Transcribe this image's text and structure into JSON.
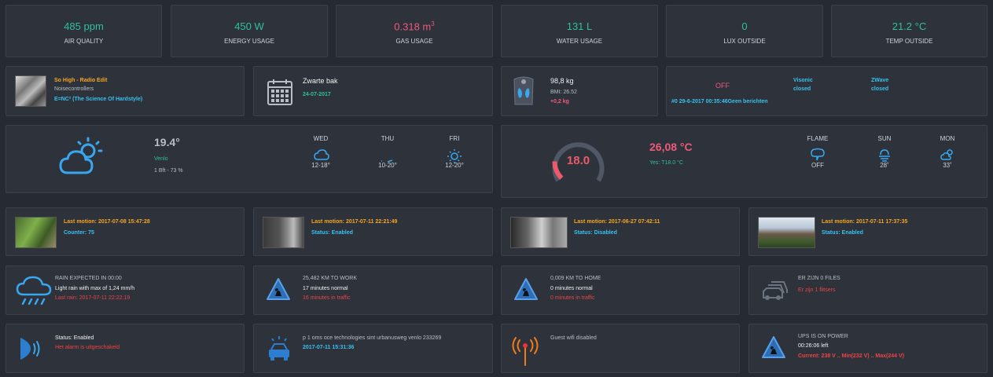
{
  "stats": [
    {
      "value": "485 ppm",
      "label": "AIR QUALITY",
      "color": "#2fbf9f"
    },
    {
      "value": "450 W",
      "label": "ENERGY USAGE",
      "color": "#2fbf9f"
    },
    {
      "value": "0.318 m",
      "sup": "3",
      "label": "GAS USAGE",
      "color": "#ee5a7a"
    },
    {
      "value": "131 L",
      "label": "WATER USAGE",
      "color": "#2fbf9f"
    },
    {
      "value": "0",
      "label": "LUX OUTSIDE",
      "color": "#2fbf9f"
    },
    {
      "value": "21.2 °C",
      "label": "TEMP OUTSIDE",
      "color": "#2fbf9f"
    }
  ],
  "music": {
    "title": "So High - Radio Edit",
    "artist": "Noisecontrollers",
    "album": "E=NC² (The Science Of Hardstyle)"
  },
  "calendar": {
    "title": "Zwarte bak",
    "date": "24-07-2017",
    "icon": "calendar-icon"
  },
  "scale": {
    "weight": "98,8 kg",
    "bmi": "BMI: 26.52",
    "delta": "+0,2 kg",
    "icon": "scale-icon"
  },
  "alarm_panel": {
    "state": "OFF",
    "visonic_name": "Visonic",
    "visonic_state": "closed",
    "zwave_name": "ZWave",
    "zwave_state": "closed",
    "message": "#0 29-6-2017 00:35:46Geen berichten"
  },
  "weather": {
    "temp": "19.4°",
    "place": "Venlo",
    "wind": "1 Bft - 73 %",
    "icon": "partly-cloudy-icon",
    "forecast": [
      {
        "day": "WED",
        "temp": "12-18°",
        "icon": "cloud-icon"
      },
      {
        "day": "THU",
        "temp": "10-20°",
        "icon": "wind-icon"
      },
      {
        "day": "FRI",
        "temp": "12-20°",
        "icon": "sun-icon"
      }
    ]
  },
  "thermostat": {
    "setpoint": "18.0",
    "current": "26,08 °C",
    "yesterday": "Yes: T18.0 °C",
    "gauge_fraction": 0.55,
    "extra": [
      {
        "label": "FLAME",
        "value": "OFF",
        "icon": "flame-bubble-icon"
      },
      {
        "label": "SUN",
        "value": "28˚",
        "icon": "sun-hazy-icon"
      },
      {
        "label": "MON",
        "value": "33˚",
        "icon": "cloud-sun-icon"
      }
    ]
  },
  "cameras": [
    {
      "motion_label": "Last motion:",
      "motion_time": "2017-07-08 15:47:28",
      "status": "Counter: 75"
    },
    {
      "motion_label": "Last motion:",
      "motion_time": "2017-07-11 22:21:49",
      "status": "Status: Enabled"
    },
    {
      "motion_label": "Last motion:",
      "motion_time": "2017-06-27 07:42:11",
      "status": "Status: Disabled"
    },
    {
      "motion_label": "Last motion:",
      "motion_time": "2017-07-11 17:37:35",
      "status": "Status: Enabled"
    }
  ],
  "rain": {
    "title": "RAIN EXPECTED IN 00:00",
    "desc": "Light rain with max of 1,24 mm/h",
    "last": "Last rain: 2017-07-11 22:22:19",
    "icon": "rain-cloud-icon"
  },
  "traffic_work": {
    "title": "25,482 KM TO WORK",
    "normal": "17 minutes normal",
    "delay": "16 minutes in traffic",
    "icon": "roadworks-icon"
  },
  "traffic_home": {
    "title": "0,009 KM TO HOME",
    "normal": "0 minutes normal",
    "delay": "0 minutes in traffic",
    "icon": "roadworks-icon"
  },
  "files": {
    "title": "ER ZIJN 0 FILES",
    "flitsers": "Er zijn 1 flitsers",
    "icon": "cars-icon"
  },
  "alarm": {
    "status": "Status: Enabled",
    "message": "Het alarm is uitgeschakeld",
    "icon": "sound-icon"
  },
  "police": {
    "text": "p 1 oms oce technologies sint urbanusweg venlo 233269",
    "time": "2017-07-11 15:31:36",
    "icon": "police-car-icon"
  },
  "wifi": {
    "text": "Guest wifi disabled",
    "icon": "antenna-icon"
  },
  "ups": {
    "title": "UPS IS ON POWER",
    "left": "00:26:06 left",
    "current": "Current: 238 V .. Min(232 V) .. Max(244 V)",
    "icon": "warning-icon"
  }
}
